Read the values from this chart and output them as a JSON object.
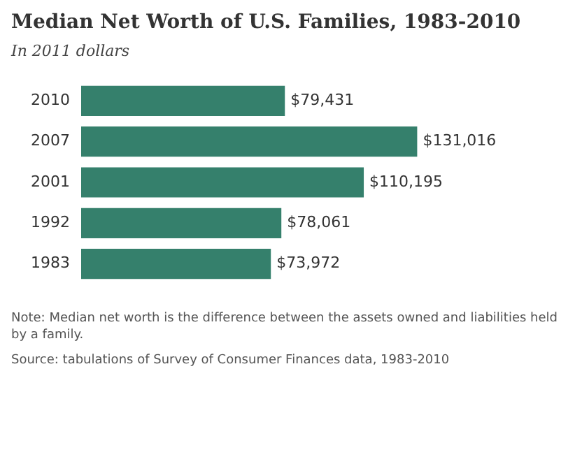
{
  "chart_data": {
    "type": "bar",
    "orientation": "horizontal",
    "title": "Median Net Worth of U.S. Families, 1983-2010",
    "subtitle": "In 2011 dollars",
    "categories": [
      "2010",
      "2007",
      "2001",
      "1992",
      "1983"
    ],
    "values": [
      79431,
      131016,
      110195,
      78061,
      73972
    ],
    "value_labels": [
      "$79,431",
      "$131,016",
      "$110,195",
      "$78,061",
      "$73,972"
    ],
    "color": "#35806c",
    "legend": false,
    "tick_labels": "y",
    "annotations": [
      "Note: Median net worth is the difference between the assets owned and liabilities held by a family.",
      "Source: tabulations of Survey of Consumer Finances data, 1983-2010"
    ]
  }
}
